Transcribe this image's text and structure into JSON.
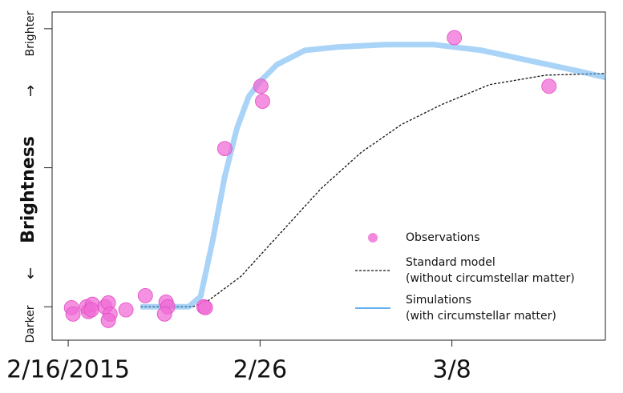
{
  "chart_data": {
    "type": "scatter",
    "ylabel": "Brightness",
    "annotations": [
      {
        "text": "Brighter"
      },
      {
        "text": "↑"
      },
      {
        "text": "↓"
      },
      {
        "text": "Darker"
      }
    ],
    "xlim": [
      -0.84,
      28.0
    ],
    "xticks": [
      {
        "value": 0,
        "label": "2/16/2015"
      },
      {
        "value": 10,
        "label": "2/26"
      },
      {
        "value": 20,
        "label": "3/8"
      }
    ],
    "ylim": [
      -0.12,
      1.06
    ],
    "yticks": [
      0,
      0.5,
      1
    ],
    "legend": "lower right",
    "series": [
      {
        "name": "Observations",
        "type": "scatter",
        "color": "#f06cd6",
        "x": [
          0.17,
          0.25,
          0.96,
          1.05,
          1.26,
          1.21,
          1.92,
          2.09,
          2.18,
          2.09,
          3.01,
          4.02,
          5.1,
          5.19,
          5.02,
          7.07,
          7.15,
          8.16,
          10.04,
          10.13,
          20.13,
          25.06
        ],
        "values": [
          -0.003,
          -0.026,
          0,
          -0.017,
          0.009,
          -0.011,
          0,
          0.014,
          -0.026,
          -0.049,
          -0.011,
          0.04,
          0.017,
          0,
          -0.026,
          0,
          -0.003,
          0.569,
          0.793,
          0.739,
          0.968,
          0.793
        ]
      },
      {
        "name": "Standard model",
        "legend_note": "(without circumstellar matter)",
        "type": "line",
        "dashed": true,
        "color": "#111111",
        "x": [
          3.77,
          6.49,
          7.32,
          9.0,
          11.09,
          13.18,
          15.27,
          17.36,
          19.46,
          21.97,
          24.9,
          28.0
        ],
        "values": [
          0,
          0,
          0.023,
          0.109,
          0.267,
          0.425,
          0.555,
          0.655,
          0.727,
          0.799,
          0.833,
          0.839
        ]
      },
      {
        "name": "Simulations",
        "legend_note": "(with circumstellar matter)",
        "type": "line",
        "dashed": false,
        "color": "#63aef0",
        "x": [
          3.77,
          6.28,
          6.9,
          7.53,
          8.16,
          8.79,
          9.41,
          10.04,
          10.88,
          12.34,
          14.02,
          16.53,
          19.04,
          21.55,
          24.06,
          26.57,
          28.0
        ],
        "values": [
          0,
          0,
          0.037,
          0.239,
          0.468,
          0.641,
          0.756,
          0.813,
          0.871,
          0.922,
          0.934,
          0.943,
          0.943,
          0.922,
          0.885,
          0.848,
          0.825
        ]
      }
    ]
  }
}
